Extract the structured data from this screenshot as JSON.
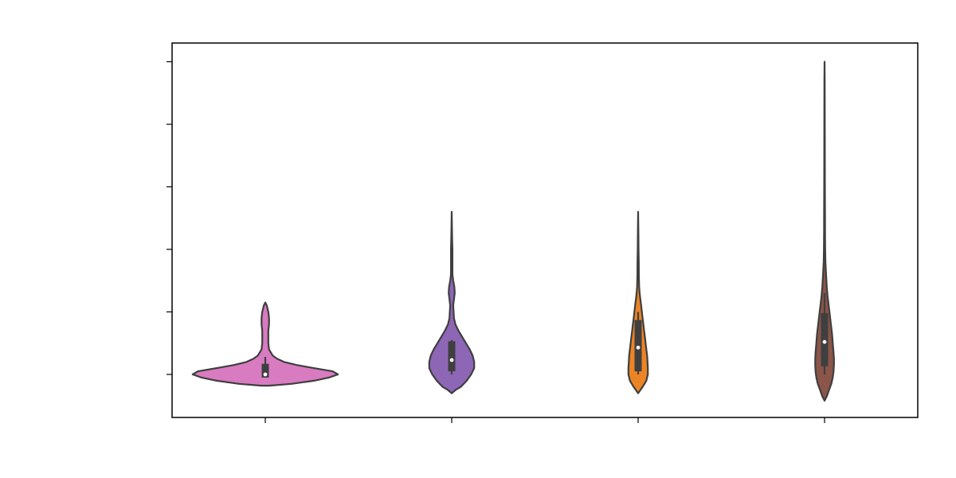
{
  "chart_data": {
    "type": "violin",
    "title": "",
    "xlabel": "",
    "ylabel": "",
    "categories": [
      "",
      "",
      "",
      ""
    ],
    "ylim": [
      -0.7,
      5.3
    ],
    "yticks": [
      0,
      1,
      2,
      3,
      4,
      5
    ],
    "ytick_labels": [
      "",
      "",
      "",
      "",
      "",
      ""
    ],
    "grid": false,
    "legend": "none",
    "violins": [
      {
        "color": "#d97bc1",
        "median": 0.0,
        "q1": -0.05,
        "q3": 0.17,
        "whisker_low": -0.05,
        "whisker_high": 0.28,
        "profile": [
          [
            -0.18,
            0.05
          ],
          [
            -0.15,
            0.35
          ],
          [
            -0.1,
            0.65
          ],
          [
            -0.05,
            0.85
          ],
          [
            0.0,
            0.97
          ],
          [
            0.05,
            0.9
          ],
          [
            0.1,
            0.65
          ],
          [
            0.15,
            0.42
          ],
          [
            0.2,
            0.25
          ],
          [
            0.25,
            0.16
          ],
          [
            0.3,
            0.1
          ],
          [
            0.4,
            0.05
          ],
          [
            0.5,
            0.04
          ],
          [
            0.6,
            0.04
          ],
          [
            0.7,
            0.04
          ],
          [
            0.8,
            0.05
          ],
          [
            0.9,
            0.05
          ],
          [
            1.0,
            0.04
          ],
          [
            1.1,
            0.02
          ],
          [
            1.15,
            0.0
          ]
        ]
      },
      {
        "color": "#8d66b6",
        "median": 0.23,
        "q1": 0.05,
        "q3": 0.53,
        "whisker_low": 0.0,
        "whisker_high": 0.55,
        "profile": [
          [
            -0.3,
            0.0
          ],
          [
            -0.25,
            0.05
          ],
          [
            -0.2,
            0.12
          ],
          [
            -0.1,
            0.2
          ],
          [
            0.0,
            0.26
          ],
          [
            0.1,
            0.3
          ],
          [
            0.2,
            0.3
          ],
          [
            0.3,
            0.28
          ],
          [
            0.4,
            0.24
          ],
          [
            0.5,
            0.19
          ],
          [
            0.6,
            0.14
          ],
          [
            0.7,
            0.09
          ],
          [
            0.8,
            0.05
          ],
          [
            0.9,
            0.03
          ],
          [
            1.0,
            0.025
          ],
          [
            1.1,
            0.02
          ],
          [
            1.2,
            0.03
          ],
          [
            1.3,
            0.04
          ],
          [
            1.4,
            0.035
          ],
          [
            1.5,
            0.02
          ],
          [
            1.6,
            0.01
          ],
          [
            1.8,
            0.01
          ],
          [
            2.0,
            0.01
          ],
          [
            2.2,
            0.005
          ],
          [
            2.6,
            0.0
          ]
        ]
      },
      {
        "color": "#eb8424",
        "median": 0.43,
        "q1": 0.05,
        "q3": 0.87,
        "whisker_low": 0.0,
        "whisker_high": 1.0,
        "profile": [
          [
            -0.3,
            0.0
          ],
          [
            -0.25,
            0.03
          ],
          [
            -0.2,
            0.06
          ],
          [
            -0.1,
            0.11
          ],
          [
            0.0,
            0.13
          ],
          [
            0.1,
            0.13
          ],
          [
            0.2,
            0.125
          ],
          [
            0.3,
            0.12
          ],
          [
            0.4,
            0.11
          ],
          [
            0.5,
            0.1
          ],
          [
            0.6,
            0.09
          ],
          [
            0.7,
            0.08
          ],
          [
            0.8,
            0.07
          ],
          [
            0.9,
            0.06
          ],
          [
            1.0,
            0.05
          ],
          [
            1.1,
            0.04
          ],
          [
            1.2,
            0.03
          ],
          [
            1.3,
            0.02
          ],
          [
            1.4,
            0.014
          ],
          [
            1.6,
            0.01
          ],
          [
            1.8,
            0.008
          ],
          [
            2.0,
            0.005
          ],
          [
            2.2,
            0.004
          ],
          [
            2.6,
            0.0
          ]
        ]
      },
      {
        "color": "#8b5549",
        "median": 0.52,
        "q1": 0.13,
        "q3": 0.98,
        "whisker_low": 0.0,
        "whisker_high": 1.3,
        "profile": [
          [
            -0.42,
            0.0
          ],
          [
            -0.35,
            0.03
          ],
          [
            -0.25,
            0.06
          ],
          [
            -0.15,
            0.09
          ],
          [
            -0.05,
            0.11
          ],
          [
            0.05,
            0.12
          ],
          [
            0.15,
            0.125
          ],
          [
            0.25,
            0.125
          ],
          [
            0.35,
            0.12
          ],
          [
            0.5,
            0.11
          ],
          [
            0.65,
            0.1
          ],
          [
            0.8,
            0.085
          ],
          [
            0.95,
            0.07
          ],
          [
            1.1,
            0.055
          ],
          [
            1.25,
            0.04
          ],
          [
            1.4,
            0.03
          ],
          [
            1.6,
            0.02
          ],
          [
            1.8,
            0.012
          ],
          [
            2.0,
            0.008
          ],
          [
            2.3,
            0.006
          ],
          [
            2.5,
            0.006
          ],
          [
            2.8,
            0.005
          ],
          [
            3.2,
            0.004
          ],
          [
            4.0,
            0.003
          ],
          [
            4.7,
            0.002
          ],
          [
            5.0,
            0.0
          ]
        ]
      }
    ]
  }
}
